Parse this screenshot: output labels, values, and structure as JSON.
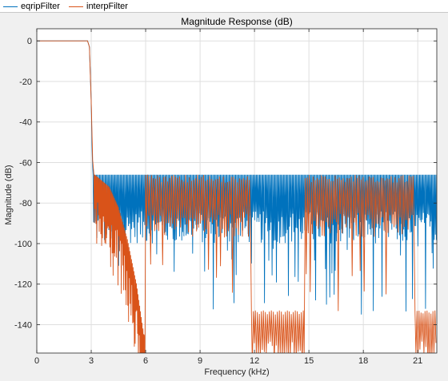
{
  "legend": {
    "items": [
      {
        "label": "eqripFilter",
        "color": "#0072BD"
      },
      {
        "label": "interpFilter",
        "color": "#D95319"
      }
    ]
  },
  "chart_data": {
    "type": "line",
    "title": "Magnitude Response (dB)",
    "xlabel": "Frequency (kHz)",
    "ylabel": "Magnitude (dB)",
    "xlim": [
      0,
      22.05
    ],
    "ylim": [
      -154,
      6
    ],
    "xticks": [
      0,
      3,
      6,
      9,
      12,
      15,
      18,
      21
    ],
    "yticks": [
      0,
      -20,
      -40,
      -60,
      -80,
      -100,
      -120,
      -140
    ],
    "grid": true,
    "legend_position": "top",
    "series": [
      {
        "name": "eqripFilter",
        "color": "#0072BD",
        "x": [
          0,
          1,
          2,
          2.8,
          2.9,
          3.0,
          3.05,
          3.1,
          3.15,
          4,
          5,
          6,
          7,
          8,
          9,
          10,
          11,
          12,
          13,
          14,
          15,
          16,
          17,
          18,
          19,
          20,
          21,
          22.05
        ],
        "y": [
          0,
          0,
          0,
          0,
          -3,
          -30,
          -55,
          -66,
          -66,
          -66,
          -66,
          -66,
          -66,
          -66,
          -66,
          -66,
          -66,
          -66,
          -66,
          -66,
          -66,
          -66,
          -66,
          -66,
          -66,
          -66,
          -66,
          -66
        ],
        "stopband": {
          "start": 3.1,
          "end": 22.05,
          "ripple_peak": -66,
          "typical_trough": -92,
          "deep_nulls": [
            -100,
            -110,
            -125
          ]
        }
      },
      {
        "name": "interpFilter",
        "color": "#D95319",
        "x": [
          0,
          1,
          2,
          2.8,
          2.9,
          3.0,
          3.1,
          3.3,
          3.6,
          4.0,
          4.5,
          5.0,
          5.5,
          6.0,
          8,
          10,
          11.9,
          12.5,
          13,
          14,
          14.6,
          15,
          18,
          20.9,
          21.5,
          22.05
        ],
        "y": [
          0,
          0,
          0,
          0,
          -3,
          -30,
          -66,
          -66,
          -68,
          -72,
          -82,
          -98,
          -125,
          -152,
          -66,
          -66,
          -100,
          -135,
          -138,
          -137,
          -148,
          -66,
          -66,
          -100,
          -135,
          -138
        ],
        "stopband_envelope": [
          {
            "x": 3.2,
            "y": -66
          },
          {
            "x": 4.0,
            "y": -72
          },
          {
            "x": 4.5,
            "y": -82
          },
          {
            "x": 5.0,
            "y": -98
          },
          {
            "x": 5.5,
            "y": -120
          },
          {
            "x": 5.9,
            "y": -145
          }
        ],
        "image_bands": [
          [
            11.8,
            14.7
          ],
          [
            20.8,
            22.05
          ]
        ],
        "image_band_level": -133
      }
    ]
  }
}
